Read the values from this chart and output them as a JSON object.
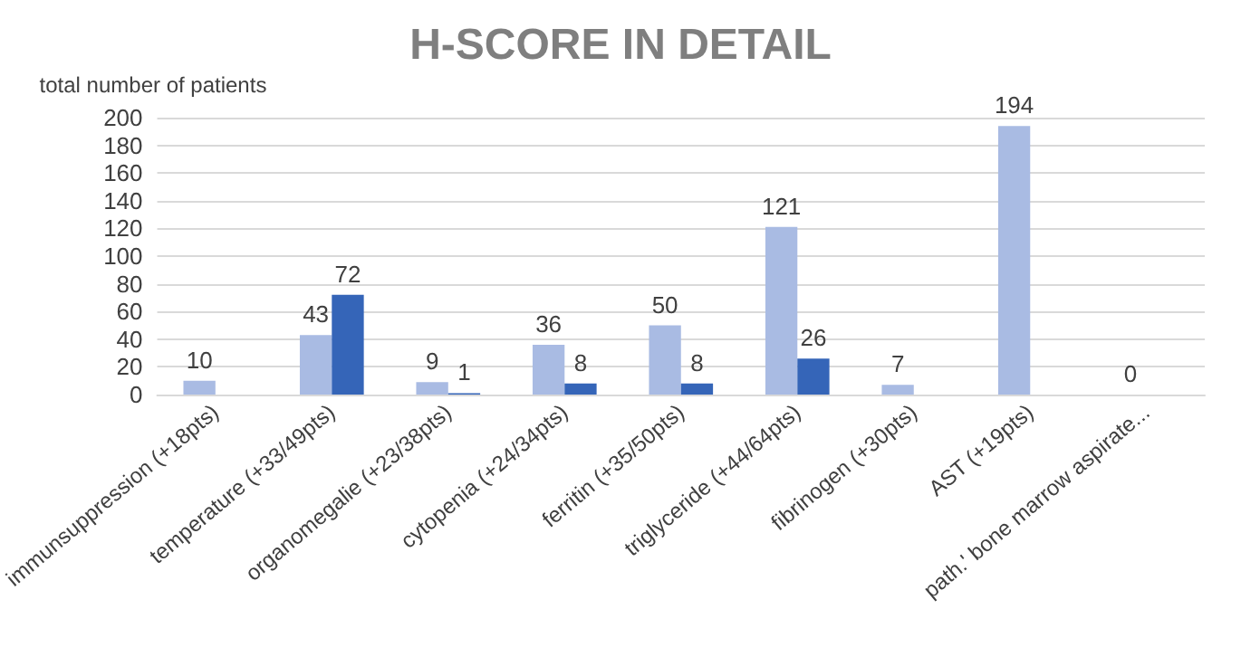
{
  "chart_data": {
    "type": "bar",
    "title": "H-SCORE IN DETAIL",
    "ylabel": "total number of patients",
    "categories": [
      "immunsuppression (+18pts)",
      "temperature (+33/49pts)",
      "organomegalie (+23/38pts)",
      "cytopenia (+24/34pts)",
      "ferritin (+35/50pts)",
      "triglyceride (+44/64pts)",
      "fibrinogen (+30pts)",
      "AST (+19pts)",
      "path.' bone marrow aspirate..."
    ],
    "series": [
      {
        "color": "#a9bbe3",
        "values": [
          10,
          43,
          9,
          36,
          50,
          121,
          7,
          194,
          0
        ]
      },
      {
        "color": "#3565b8",
        "values": [
          null,
          72,
          1,
          8,
          8,
          26,
          null,
          null,
          null
        ]
      }
    ],
    "ylim": [
      0,
      200
    ],
    "yticks": [
      0,
      20,
      40,
      60,
      80,
      100,
      120,
      140,
      160,
      180,
      200
    ],
    "grid": "y",
    "data_labels": true
  }
}
